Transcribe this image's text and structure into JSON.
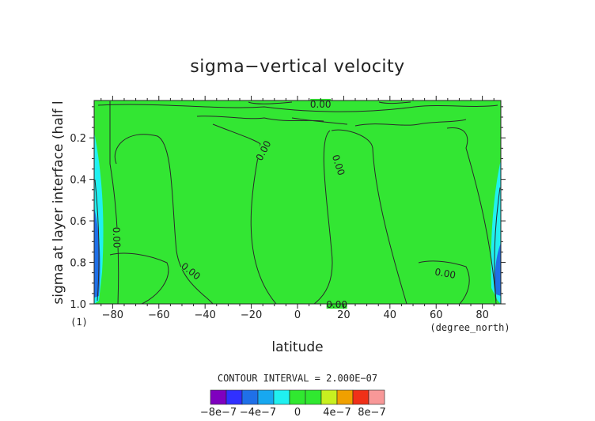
{
  "chart_data": {
    "type": "contour",
    "title": "sigma−vertical velocity",
    "xlabel": "latitude",
    "ylabel": "sigma at layer interface (half l",
    "x_unit": "(degree_north)",
    "y_unit": "(1)",
    "xlim": [
      -88,
      88
    ],
    "ylim": [
      1.0,
      0.02
    ],
    "x_ticks": [
      -80,
      -60,
      -40,
      -20,
      0,
      20,
      40,
      60,
      80
    ],
    "x_tick_labels": [
      "−80",
      "−60",
      "−40",
      "−20",
      "0",
      "20",
      "40",
      "60",
      "80"
    ],
    "y_ticks": [
      0.2,
      0.4,
      0.6,
      0.8,
      1.0
    ],
    "y_tick_labels": [
      "0.2",
      "0.4",
      "0.6",
      "0.8",
      "1.0"
    ],
    "contour_interval_text": "CONTOUR INTERVAL = 2.000E−07",
    "contour_labels": [
      {
        "text": "0.00",
        "lat": 10,
        "sigma": 0.035
      },
      {
        "text": "0.00",
        "lat": -15,
        "sigma": 0.26
      },
      {
        "text": "0.00",
        "lat": 18,
        "sigma": 0.33
      },
      {
        "text": "0.00",
        "lat": -78,
        "sigma": 0.68
      },
      {
        "text": "0.00",
        "lat": -46,
        "sigma": 0.84
      },
      {
        "text": "0.00",
        "lat": 64,
        "sigma": 0.85
      },
      {
        "text": "0.00",
        "lat": 17,
        "sigma": 1.0
      }
    ],
    "colorbar": {
      "colors": [
        "#7f00bf",
        "#3030ff",
        "#1f70e8",
        "#17a8f0",
        "#20f0f0",
        "#30e830",
        "#30e830",
        "#c8f020",
        "#f0a000",
        "#f03018",
        "#f89898"
      ],
      "tick_labels": [
        "−8e−7",
        "−4e−7",
        "0",
        "4e−7",
        "8e−7"
      ]
    },
    "colors": {
      "background_field": "#33e633",
      "negative_weak": "#20f0f0",
      "negative_mid": "#1f70e8",
      "contour_line": "#2a2a2a"
    }
  }
}
